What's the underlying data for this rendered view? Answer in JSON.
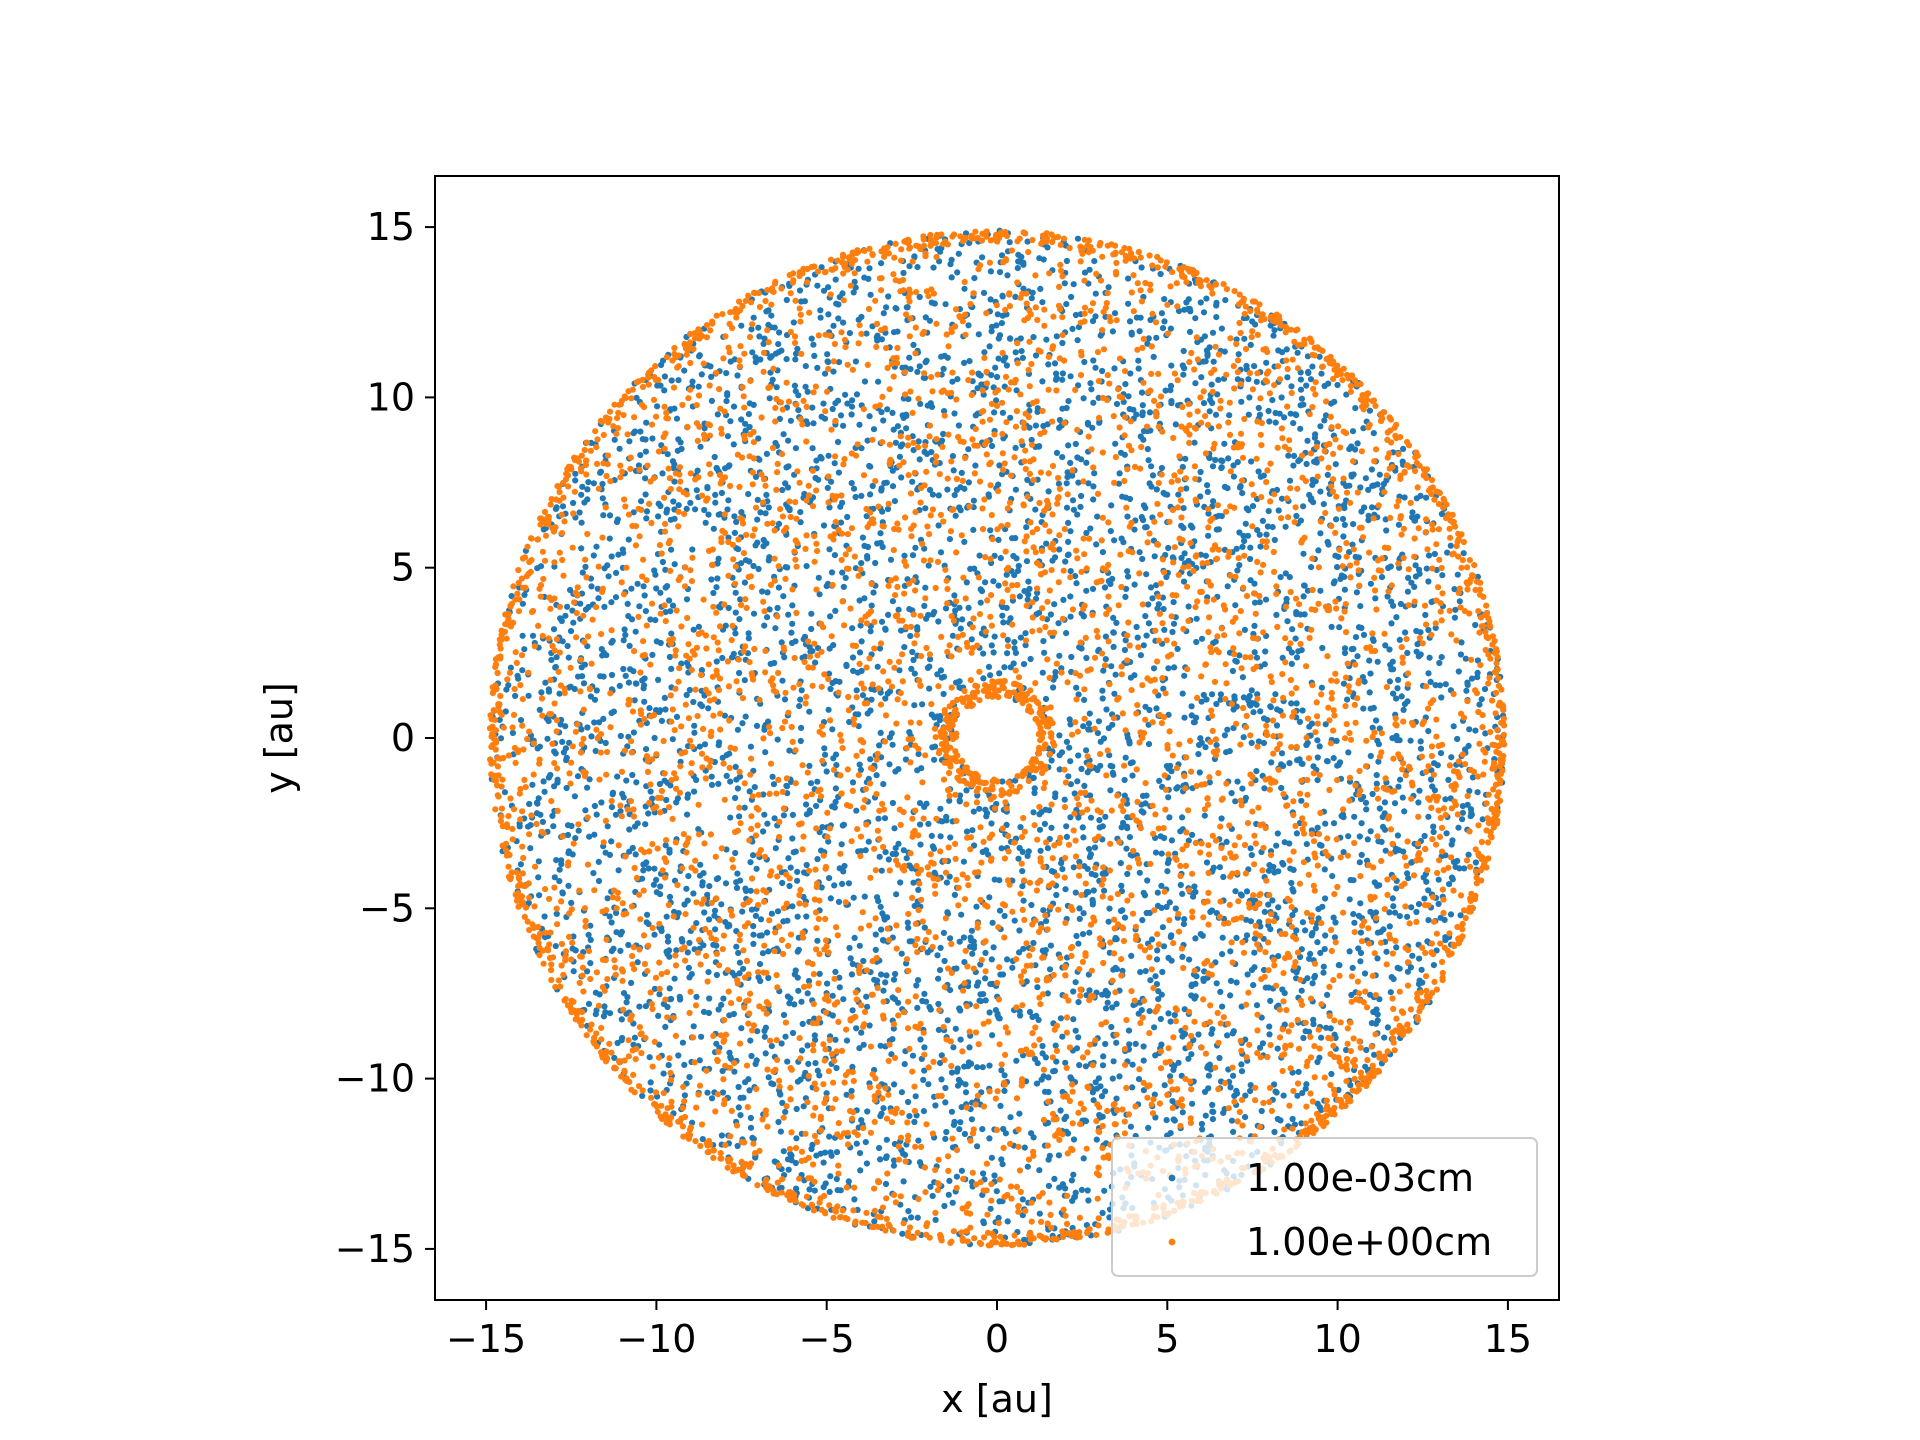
{
  "chart_data": {
    "type": "scatter",
    "title": "",
    "xlabel": "x [au]",
    "ylabel": "y [au]",
    "xlim": [
      -16.5,
      16.5
    ],
    "ylim": [
      -16.5,
      16.5
    ],
    "xticks": [
      -15,
      -10,
      -5,
      0,
      5,
      10,
      15
    ],
    "yticks": [
      -15,
      -10,
      -5,
      0,
      5,
      10,
      15
    ],
    "xtick_labels": [
      "−15",
      "−10",
      "−5",
      "0",
      "5",
      "10",
      "15"
    ],
    "ytick_labels": [
      "−15",
      "−10",
      "−5",
      "0",
      "5",
      "10",
      "15"
    ],
    "grid": false,
    "legend_position": "lower-right",
    "series": [
      {
        "name": "1.00e-03cm",
        "color": "#1f77b4",
        "distribution": {
          "shape": "annulus",
          "inner_radius": 1.2,
          "outer_radius": 14.9,
          "approx_count": 5000,
          "edge_concentration": false
        }
      },
      {
        "name": "1.00e+00cm",
        "color": "#ff7f0e",
        "distribution": {
          "shape": "annulus",
          "inner_radius": 1.2,
          "outer_radius": 14.9,
          "approx_count": 5000,
          "edge_concentration": true
        }
      }
    ]
  }
}
